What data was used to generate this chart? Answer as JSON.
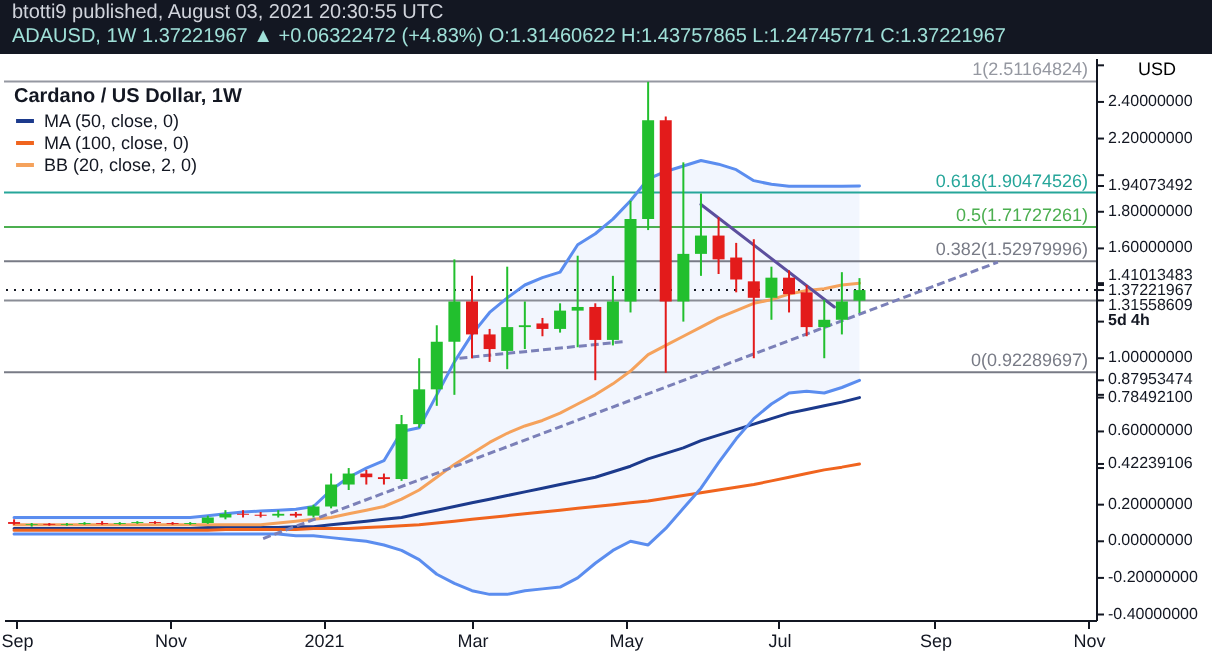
{
  "chart_data": {
    "type": "candlestick",
    "title": "btotti9 published, August 03, 2021 20:30:55 UTC",
    "subtitle": "ADAUSD, 1W 1.37221967 ▲ +0.06322472 (+4.83%) O:1.31460622 H:1.43757865 L:1.24745771 C:1.37221967",
    "legend_title": "Cardano / US Dollar, 1W",
    "ylabel": "USD",
    "legend": "top left",
    "x": [
      "2020-08-31",
      "2020-09-07",
      "2020-09-14",
      "2020-09-21",
      "2020-09-28",
      "2020-10-05",
      "2020-10-12",
      "2020-10-19",
      "2020-10-26",
      "2020-11-02",
      "2020-11-09",
      "2020-11-16",
      "2020-11-23",
      "2020-11-30",
      "2020-12-07",
      "2020-12-14",
      "2020-12-21",
      "2020-12-28",
      "2021-01-04",
      "2021-01-11",
      "2021-01-18",
      "2021-01-25",
      "2021-02-01",
      "2021-02-08",
      "2021-02-15",
      "2021-02-22",
      "2021-03-01",
      "2021-03-08",
      "2021-03-15",
      "2021-03-22",
      "2021-03-29",
      "2021-04-05",
      "2021-04-12",
      "2021-04-19",
      "2021-04-26",
      "2021-05-03",
      "2021-05-10",
      "2021-05-17",
      "2021-05-24",
      "2021-05-31",
      "2021-06-07",
      "2021-06-14",
      "2021-06-21",
      "2021-06-28",
      "2021-07-05",
      "2021-07-12",
      "2021-07-19",
      "2021-07-26",
      "2021-08-02"
    ],
    "ohlc": [
      [
        0.105,
        0.12,
        0.09,
        0.095
      ],
      [
        0.09,
        0.1,
        0.08,
        0.095
      ],
      [
        0.095,
        0.1,
        0.085,
        0.09
      ],
      [
        0.09,
        0.1,
        0.085,
        0.095
      ],
      [
        0.095,
        0.105,
        0.09,
        0.1
      ],
      [
        0.1,
        0.11,
        0.09,
        0.095
      ],
      [
        0.095,
        0.105,
        0.09,
        0.1
      ],
      [
        0.1,
        0.11,
        0.095,
        0.105
      ],
      [
        0.105,
        0.11,
        0.095,
        0.1
      ],
      [
        0.1,
        0.105,
        0.09,
        0.095
      ],
      [
        0.095,
        0.105,
        0.09,
        0.1
      ],
      [
        0.1,
        0.14,
        0.095,
        0.13
      ],
      [
        0.13,
        0.17,
        0.12,
        0.15
      ],
      [
        0.15,
        0.17,
        0.13,
        0.145
      ],
      [
        0.145,
        0.16,
        0.13,
        0.14
      ],
      [
        0.14,
        0.17,
        0.13,
        0.15
      ],
      [
        0.15,
        0.16,
        0.13,
        0.14
      ],
      [
        0.14,
        0.2,
        0.13,
        0.19
      ],
      [
        0.19,
        0.37,
        0.18,
        0.31
      ],
      [
        0.31,
        0.4,
        0.28,
        0.37
      ],
      [
        0.37,
        0.39,
        0.31,
        0.35
      ],
      [
        0.35,
        0.37,
        0.31,
        0.34
      ],
      [
        0.34,
        0.69,
        0.33,
        0.64
      ],
      [
        0.64,
        1.0,
        0.62,
        0.83
      ],
      [
        0.83,
        1.18,
        0.74,
        1.09
      ],
      [
        1.09,
        1.54,
        0.8,
        1.31
      ],
      [
        1.31,
        1.45,
        1.0,
        1.13
      ],
      [
        1.13,
        1.16,
        0.98,
        1.05
      ],
      [
        1.04,
        1.5,
        0.94,
        1.17
      ],
      [
        1.17,
        1.31,
        1.05,
        1.18
      ],
      [
        1.19,
        1.22,
        1.12,
        1.16
      ],
      [
        1.16,
        1.3,
        1.14,
        1.26
      ],
      [
        1.26,
        1.56,
        1.06,
        1.28
      ],
      [
        1.28,
        1.3,
        0.88,
        1.1
      ],
      [
        1.1,
        1.45,
        1.07,
        1.31
      ],
      [
        1.31,
        1.86,
        1.25,
        1.76
      ],
      [
        1.76,
        2.51,
        1.7,
        2.3
      ],
      [
        2.3,
        2.32,
        0.92,
        1.31
      ],
      [
        1.31,
        2.07,
        1.2,
        1.57
      ],
      [
        1.57,
        1.9,
        1.45,
        1.67
      ],
      [
        1.67,
        1.77,
        1.46,
        1.54
      ],
      [
        1.55,
        1.63,
        1.36,
        1.43
      ],
      [
        1.42,
        1.65,
        1.0,
        1.33
      ],
      [
        1.33,
        1.5,
        1.21,
        1.44
      ],
      [
        1.44,
        1.48,
        1.25,
        1.35
      ],
      [
        1.36,
        1.4,
        1.12,
        1.17
      ],
      [
        1.17,
        1.32,
        1.0,
        1.21
      ],
      [
        1.21,
        1.47,
        1.13,
        1.31
      ],
      [
        1.31460622,
        1.43757865,
        1.24745771,
        1.37221967
      ]
    ],
    "series": [
      {
        "type": "line",
        "name": "MA (50, close, 0)",
        "color": "#1c3a8c",
        "values": [
          0.07,
          0.07,
          0.07,
          0.07,
          0.07,
          0.07,
          0.07,
          0.07,
          0.07,
          0.07,
          0.07,
          0.075,
          0.075,
          0.075,
          0.075,
          0.075,
          0.08,
          0.08,
          0.09,
          0.1,
          0.11,
          0.12,
          0.13,
          0.15,
          0.17,
          0.19,
          0.21,
          0.23,
          0.25,
          0.27,
          0.29,
          0.31,
          0.33,
          0.35,
          0.38,
          0.41,
          0.45,
          0.48,
          0.51,
          0.55,
          0.58,
          0.61,
          0.64,
          0.67,
          0.7,
          0.72,
          0.74,
          0.76,
          0.784921
        ]
      },
      {
        "type": "line",
        "name": "MA (100, close, 0)",
        "color": "#f0641e",
        "values": [
          0.06,
          0.06,
          0.06,
          0.06,
          0.06,
          0.06,
          0.06,
          0.06,
          0.06,
          0.06,
          0.06,
          0.06,
          0.065,
          0.065,
          0.065,
          0.065,
          0.065,
          0.07,
          0.07,
          0.07,
          0.075,
          0.08,
          0.085,
          0.09,
          0.1,
          0.11,
          0.12,
          0.13,
          0.14,
          0.15,
          0.16,
          0.17,
          0.18,
          0.19,
          0.2,
          0.21,
          0.22,
          0.235,
          0.25,
          0.265,
          0.28,
          0.295,
          0.31,
          0.33,
          0.35,
          0.37,
          0.39,
          0.405,
          0.42239106
        ]
      },
      {
        "type": "line",
        "name": "BB (20, close, 2, 0)",
        "color": "#f5a25c",
        "values": [
          0.09,
          0.09,
          0.09,
          0.09,
          0.09,
          0.09,
          0.09,
          0.09,
          0.09,
          0.09,
          0.09,
          0.09,
          0.09,
          0.09,
          0.09,
          0.1,
          0.11,
          0.12,
          0.13,
          0.15,
          0.17,
          0.19,
          0.23,
          0.28,
          0.35,
          0.42,
          0.48,
          0.54,
          0.59,
          0.63,
          0.66,
          0.7,
          0.75,
          0.8,
          0.86,
          0.93,
          1.02,
          1.07,
          1.12,
          1.17,
          1.22,
          1.26,
          1.3,
          1.32,
          1.35,
          1.37,
          1.38,
          1.4,
          1.41013483
        ],
        "lower": [
          0.04,
          0.04,
          0.04,
          0.04,
          0.04,
          0.04,
          0.04,
          0.04,
          0.04,
          0.04,
          0.04,
          0.04,
          0.04,
          0.04,
          0.04,
          0.04,
          0.03,
          0.03,
          0.02,
          0.01,
          0.0,
          -0.02,
          -0.05,
          -0.1,
          -0.18,
          -0.23,
          -0.27,
          -0.29,
          -0.29,
          -0.27,
          -0.26,
          -0.25,
          -0.2,
          -0.12,
          -0.05,
          0.0,
          -0.02,
          0.07,
          0.18,
          0.29,
          0.43,
          0.56,
          0.67,
          0.75,
          0.81,
          0.82,
          0.81,
          0.84,
          0.87953474
        ],
        "upper": [
          0.13,
          0.13,
          0.13,
          0.13,
          0.13,
          0.13,
          0.13,
          0.13,
          0.13,
          0.13,
          0.13,
          0.14,
          0.15,
          0.16,
          0.165,
          0.17,
          0.175,
          0.19,
          0.28,
          0.35,
          0.4,
          0.44,
          0.6,
          0.62,
          0.8,
          0.98,
          1.13,
          1.25,
          1.33,
          1.4,
          1.44,
          1.47,
          1.62,
          1.68,
          1.76,
          1.86,
          1.98,
          2.02,
          2.05,
          2.08,
          2.06,
          2.03,
          1.97,
          1.95,
          1.94,
          1.94,
          1.94,
          1.94,
          1.94073492
        ]
      },
      {
        "type": "line",
        "color": "#5b8def",
        "values": [
          0.13,
          0.13,
          0.13,
          0.13,
          0.13,
          0.13,
          0.13,
          0.13,
          0.13,
          0.13,
          0.13,
          0.14,
          0.15,
          0.16,
          0.165,
          0.17,
          0.175,
          0.19,
          0.28,
          0.35,
          0.4,
          0.44,
          0.6,
          0.62,
          0.8,
          0.98,
          1.13,
          1.25,
          1.33,
          1.4,
          1.44,
          1.47,
          1.62,
          1.68,
          1.76,
          1.86,
          1.98,
          2.02,
          2.05,
          2.08,
          2.06,
          2.03,
          1.97,
          1.95,
          1.94,
          1.94,
          1.94,
          1.94,
          1.94073492
        ]
      },
      {
        "type": "line",
        "color": "#5b8def",
        "values": [
          0.04,
          0.04,
          0.04,
          0.04,
          0.04,
          0.04,
          0.04,
          0.04,
          0.04,
          0.04,
          0.04,
          0.04,
          0.04,
          0.04,
          0.04,
          0.04,
          0.03,
          0.03,
          0.02,
          0.01,
          0.0,
          -0.02,
          -0.05,
          -0.1,
          -0.18,
          -0.23,
          -0.27,
          -0.29,
          -0.29,
          -0.27,
          -0.26,
          -0.25,
          -0.2,
          -0.12,
          -0.05,
          0.0,
          -0.02,
          0.07,
          0.18,
          0.29,
          0.43,
          0.56,
          0.67,
          0.75,
          0.81,
          0.82,
          0.81,
          0.84,
          0.87953474
        ]
      },
      {
        "type": "line",
        "color": "#5c4f9e",
        "line_style": "solid",
        "x": [
          "2021-05-31",
          "2021-07-23"
        ],
        "values": [
          1.84,
          1.28
        ]
      },
      {
        "type": "line",
        "color": "#7b80b8",
        "line_style": "dashed",
        "x": [
          "2020-12-08",
          "2021-09-26"
        ],
        "values": [
          0.015,
          1.525
        ]
      },
      {
        "type": "line",
        "color": "#7b80b8",
        "line_style": "dashed",
        "x": [
          "2021-02-24",
          "2021-04-30"
        ],
        "values": [
          1.0,
          1.09
        ]
      }
    ],
    "ref_lines": [
      {
        "axis": "y",
        "value": 2.51164824,
        "label": "1(2.51164824)",
        "color": "#9598a1",
        "line_style": "solid"
      },
      {
        "axis": "y",
        "value": 1.90474526,
        "label": "0.618(1.90474526)",
        "color": "#26a69a",
        "line_style": "solid"
      },
      {
        "axis": "y",
        "value": 1.71727261,
        "label": "0.5(1.71727261)",
        "color": "#4caf50",
        "line_style": "solid"
      },
      {
        "axis": "y",
        "value": 1.52979996,
        "label": "0.382(1.52979996)",
        "color": "#787b86",
        "line_style": "solid"
      },
      {
        "axis": "y",
        "value": 0.92289697,
        "label": "0(0.92289697)",
        "color": "#787b86",
        "line_style": "solid"
      },
      {
        "axis": "y",
        "value": 1.37221967,
        "color": "#131722",
        "line_style": "dotted"
      },
      {
        "axis": "y",
        "value": 1.31558609,
        "color": "#8a8d96",
        "line_style": "solid"
      }
    ],
    "annotations": [
      "5d 4h"
    ],
    "xlim": [
      "2020-08-27",
      "2021-11-04"
    ],
    "xticks": [
      {
        "value": "2020-09-01",
        "label": "Sep"
      },
      {
        "value": "2020-11-01",
        "label": "Nov"
      },
      {
        "value": "2021-01-01",
        "label": "2021"
      },
      {
        "value": "2021-03-01",
        "label": "Mar"
      },
      {
        "value": "2021-05-01",
        "label": "May"
      },
      {
        "value": "2021-07-01",
        "label": "Jul"
      },
      {
        "value": "2021-09-01",
        "label": "Sep"
      },
      {
        "value": "2021-11-01",
        "label": "Nov"
      }
    ],
    "ylim": [
      -0.43,
      2.64
    ],
    "yticks": [
      {
        "value": -0.4,
        "label": "-0.40000000"
      },
      {
        "value": -0.2,
        "label": "-0.20000000"
      },
      {
        "value": 0,
        "label": "0.00000000"
      },
      {
        "value": 0.2,
        "label": "0.20000000"
      },
      {
        "value": 0.4,
        "label": null
      },
      {
        "value": 0.6,
        "label": "0.60000000"
      },
      {
        "value": 0.8,
        "label": null
      },
      {
        "value": 1.0,
        "label": "1.00000000"
      },
      {
        "value": 1.2,
        "label": null
      },
      {
        "value": 1.4,
        "label": null
      },
      {
        "value": 1.6,
        "label": "1.60000000"
      },
      {
        "value": 1.8,
        "label": "1.80000000"
      },
      {
        "value": 2.0,
        "label": null
      },
      {
        "value": 2.2,
        "label": "2.20000000"
      },
      {
        "value": 2.4,
        "label": "2.40000000"
      },
      {
        "value": 2.6,
        "label": null
      },
      {
        "value": 1.94073492,
        "label": "1.94073492"
      },
      {
        "value": 1.41013483,
        "label": "1.41013483"
      },
      {
        "value": 1.37221967,
        "label": "1.37221967"
      },
      {
        "value": 1.31558609,
        "label": "1.31558609"
      },
      {
        "value": 0.87953474,
        "label": "0.87953474"
      },
      {
        "value": 0.784921,
        "label": "0.78492100"
      },
      {
        "value": 0.42239106,
        "label": "0.42239106"
      }
    ]
  }
}
